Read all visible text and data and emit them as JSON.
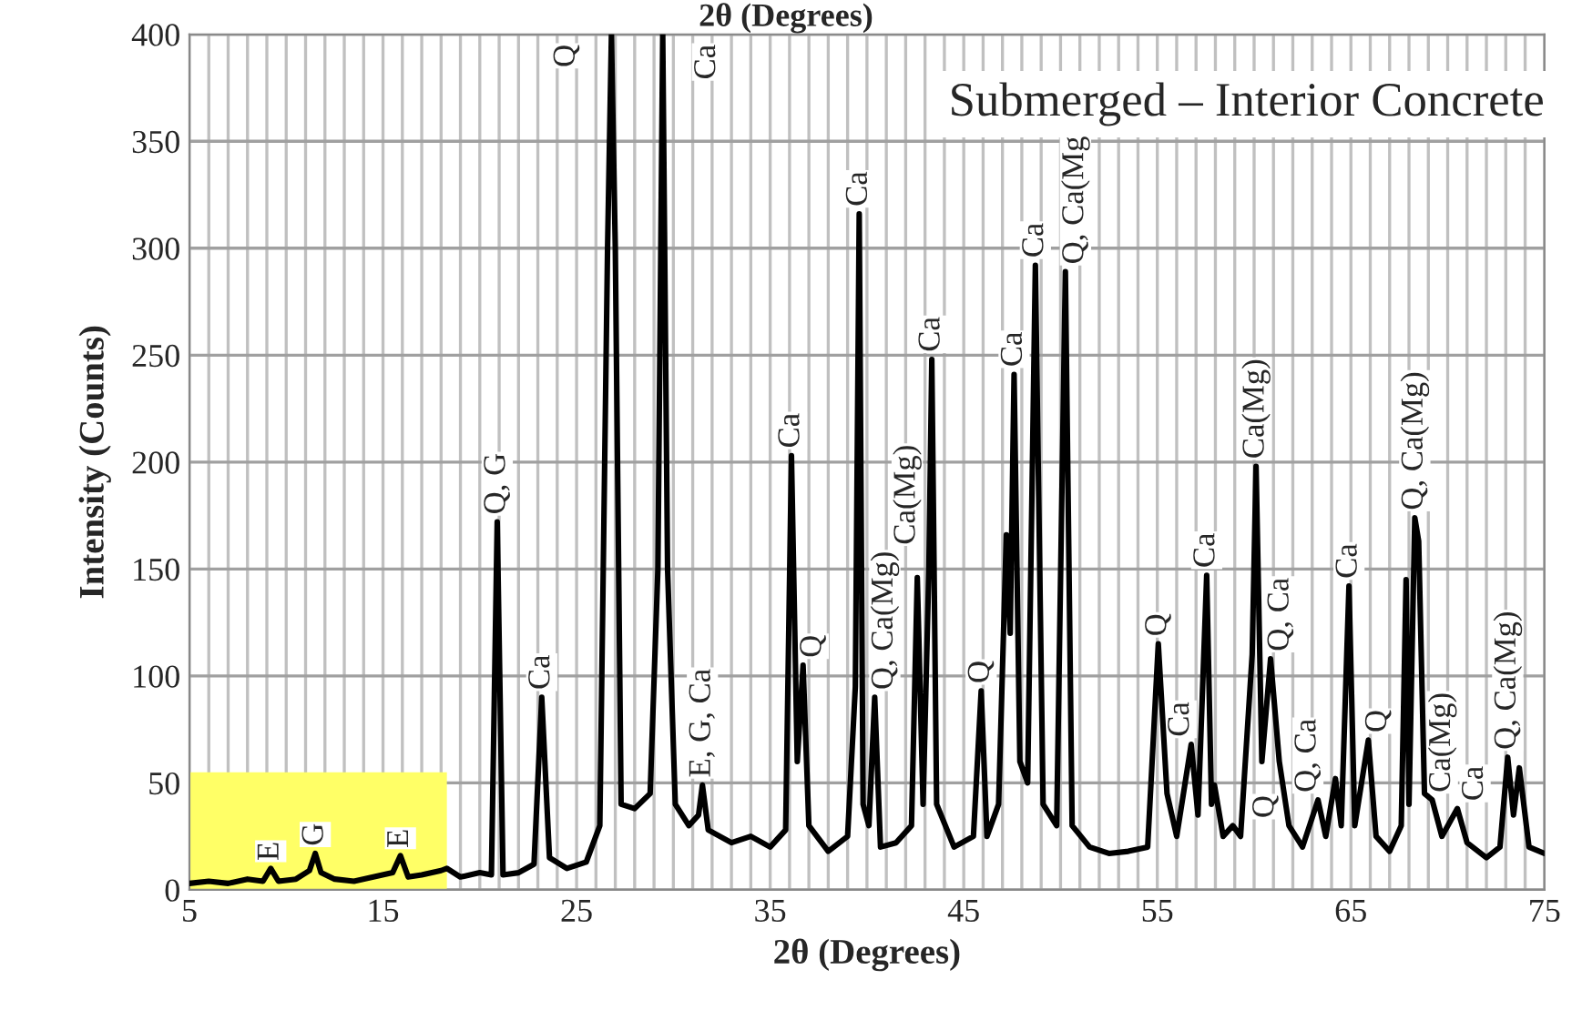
{
  "chart_data": {
    "type": "line",
    "title": "Submerged – Interior Concrete",
    "xlabel": "2θ (Degrees)",
    "ylabel": "Intensity (Counts)",
    "xlim": [
      5,
      75
    ],
    "xticks": [
      5,
      15,
      25,
      35,
      45,
      55,
      65,
      75
    ],
    "ylim": [
      0,
      400
    ],
    "yticks": [
      0,
      50,
      100,
      150,
      200,
      250,
      300,
      350,
      400
    ],
    "grid": true,
    "marker": "none",
    "line_style": "solid",
    "series": [
      {
        "type": "area",
        "color": "#ffff66",
        "x": [
          5,
          18.3
        ],
        "values": [
          55,
          55
        ]
      },
      {
        "color": "#000000",
        "x": [
          5,
          6,
          7,
          8,
          8.8,
          9.2,
          9.6,
          10.5,
          11.2,
          11.5,
          11.8,
          12.5,
          13.5,
          14.5,
          15.5,
          15.9,
          16.3,
          17,
          18,
          18.3,
          19,
          20,
          20.6,
          20.9,
          21.2,
          22,
          22.8,
          23.2,
          23.6,
          24.5,
          25.5,
          26.2,
          26.6,
          26.8,
          27.0,
          27.3,
          28,
          28.8,
          29.2,
          29.45,
          29.7,
          30.1,
          30.8,
          31.3,
          31.5,
          31.8,
          33,
          34,
          35,
          35.8,
          36.1,
          36.4,
          36.7,
          37,
          38,
          39,
          39.4,
          39.6,
          39.8,
          40.1,
          40.4,
          40.7,
          41.5,
          42.3,
          42.6,
          42.9,
          43.2,
          43.35,
          43.6,
          44.5,
          45.5,
          45.9,
          46.2,
          46.8,
          47.2,
          47.4,
          47.6,
          47.9,
          48.3,
          48.7,
          49.1,
          49.8,
          50.25,
          50.6,
          51.5,
          52.5,
          53.5,
          54.5,
          55.05,
          55.5,
          56,
          56.75,
          57.1,
          57.55,
          57.8,
          57.95,
          58.4,
          58.9,
          59.3,
          59.9,
          60.1,
          60.4,
          60.85,
          61.3,
          61.8,
          62.5,
          63.3,
          63.7,
          64.2,
          64.5,
          64.9,
          65.2,
          65.9,
          66.3,
          67,
          67.6,
          67.85,
          68.0,
          68.3,
          68.5,
          68.8,
          69.2,
          69.7,
          70.5,
          71,
          72,
          72.7,
          73.1,
          73.4,
          73.7,
          74.2,
          75
        ],
        "values": [
          3,
          4,
          3,
          5,
          4,
          10,
          4,
          5,
          9,
          17,
          8,
          5,
          4,
          6,
          8,
          16,
          6,
          7,
          9,
          10,
          6,
          8,
          7,
          172,
          7,
          8,
          12,
          90,
          15,
          10,
          13,
          30,
          300,
          400,
          300,
          40,
          38,
          45,
          150,
          400,
          150,
          40,
          30,
          35,
          49,
          28,
          22,
          25,
          20,
          28,
          203,
          60,
          105,
          30,
          18,
          25,
          95,
          316,
          40,
          30,
          90,
          20,
          22,
          30,
          146,
          40,
          151,
          248,
          40,
          20,
          25,
          93,
          25,
          40,
          166,
          120,
          241,
          60,
          50,
          292,
          40,
          30,
          289,
          30,
          20,
          17,
          18,
          20,
          115,
          45,
          25,
          68,
          35,
          147,
          40,
          49,
          25,
          30,
          25,
          110,
          198,
          60,
          108,
          60,
          30,
          20,
          42,
          25,
          52,
          30,
          142,
          30,
          70,
          25,
          18,
          30,
          145,
          40,
          174,
          163,
          45,
          42,
          25,
          38,
          22,
          15,
          20,
          62,
          35,
          57,
          20,
          17
        ]
      }
    ],
    "annotations": [
      "2θ (Degrees)",
      {
        "text": "E",
        "x": 9.2,
        "y": 10
      },
      {
        "text": "G",
        "x": 11.5,
        "y": 17
      },
      {
        "text": "E",
        "x": 15.9,
        "y": 16
      },
      {
        "text": "Q, G",
        "x": 20.9,
        "y": 172
      },
      {
        "text": "Ca",
        "x": 23.2,
        "y": 90
      },
      {
        "text": "Q",
        "x": 26.8,
        "y": 400
      },
      {
        "text": "Ca",
        "x": 29.45,
        "y": 400
      },
      {
        "text": "E, G, Ca",
        "x": 31.5,
        "y": 49
      },
      {
        "text": "Ca",
        "x": 36.1,
        "y": 203
      },
      {
        "text": "Q",
        "x": 36.7,
        "y": 105
      },
      {
        "text": "Ca",
        "x": 39.6,
        "y": 316
      },
      {
        "text": "Q, Ca(Mg)",
        "x": 40.4,
        "y": 90
      },
      {
        "text": "Ca(Mg)",
        "x": 42.6,
        "y": 146
      },
      {
        "text": "Ca",
        "x": 43.35,
        "y": 248
      },
      {
        "text": "Q",
        "x": 45.9,
        "y": 93
      },
      {
        "text": "Ca",
        "x": 47.6,
        "y": 241
      },
      {
        "text": "Ca",
        "x": 48.7,
        "y": 292
      },
      {
        "text": "Q, Ca(Mg",
        "x": 50.25,
        "y": 289
      },
      {
        "text": "Q",
        "x": 55.05,
        "y": 115
      },
      {
        "text": "Ca",
        "x": 56.75,
        "y": 68
      },
      {
        "text": "Ca",
        "x": 57.55,
        "y": 147
      },
      {
        "text": "Q",
        "x": 58.9,
        "y": 30
      },
      {
        "text": "Ca(Mg)",
        "x": 60.1,
        "y": 198
      },
      {
        "text": "Q, Ca",
        "x": 60.85,
        "y": 108
      },
      {
        "text": "Q, Ca",
        "x": 63.3,
        "y": 42
      },
      {
        "text": "Ca",
        "x": 64.9,
        "y": 142
      },
      {
        "text": "Q",
        "x": 65.9,
        "y": 70
      },
      {
        "text": "Q, Ca(Mg)",
        "x": 68.3,
        "y": 174
      },
      {
        "text": "Ca(Mg)",
        "x": 69.2,
        "y": 42
      },
      {
        "text": "Ca",
        "x": 70.5,
        "y": 38
      },
      {
        "text": "Q, Ca(Mg)",
        "x": 73.1,
        "y": 62
      }
    ]
  }
}
